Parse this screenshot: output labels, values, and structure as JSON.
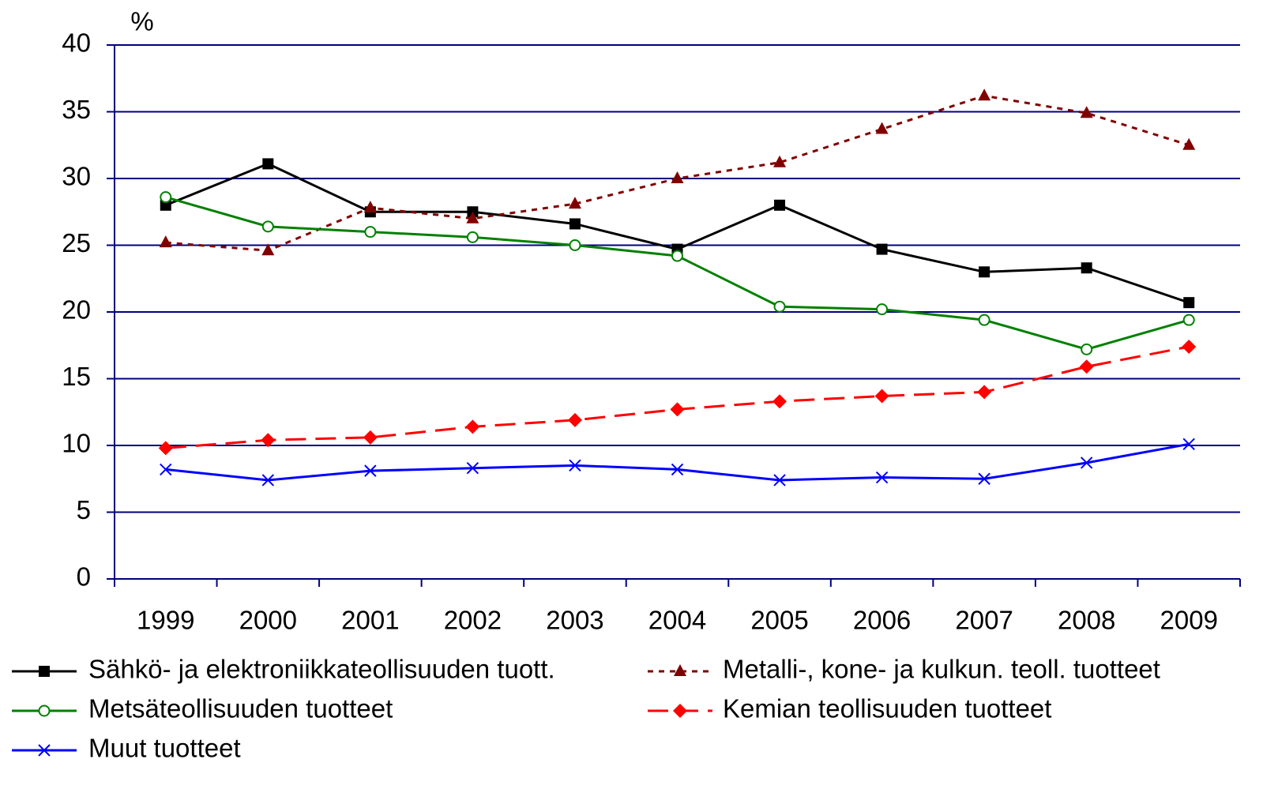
{
  "chart_data": {
    "type": "line",
    "y_axis_label": "%",
    "categories": [
      "1999",
      "2000",
      "2001",
      "2002",
      "2003",
      "2004",
      "2005",
      "2006",
      "2007",
      "2008",
      "2009"
    ],
    "ylim": [
      0,
      40
    ],
    "yticks": [
      0,
      5,
      10,
      15,
      20,
      25,
      30,
      35,
      40
    ],
    "grid": true,
    "grid_color": "#000080",
    "legend": "bottom",
    "series": [
      {
        "name": "Sähkö- ja elektroniikkateollisuuden  tuott.",
        "color": "#000000",
        "marker": "square",
        "dash": "solid",
        "values": [
          28.0,
          31.1,
          27.5,
          27.5,
          26.6,
          24.7,
          28.0,
          24.7,
          23.0,
          23.3,
          20.7
        ]
      },
      {
        "name": "Metalli-, kone- ja kulkun. teoll. tuotteet",
        "color": "#800000",
        "marker": "triangle",
        "dash": "dotted",
        "values": [
          25.2,
          24.6,
          27.8,
          27.0,
          28.1,
          30.0,
          31.2,
          33.7,
          36.2,
          34.9,
          32.5
        ]
      },
      {
        "name": "Metsäteollisuuden tuotteet",
        "color": "#008000",
        "marker": "circle-open",
        "dash": "solid",
        "values": [
          28.6,
          26.4,
          26.0,
          25.6,
          25.0,
          24.2,
          20.4,
          20.2,
          19.4,
          17.2,
          19.4
        ]
      },
      {
        "name": "Kemian teollisuuden tuotteet",
        "color": "#ff0000",
        "marker": "diamond",
        "dash": "dashed",
        "values": [
          9.8,
          10.4,
          10.6,
          11.4,
          11.9,
          12.7,
          13.3,
          13.7,
          14.0,
          15.9,
          17.4
        ]
      },
      {
        "name": "Muut tuotteet",
        "color": "#0000ff",
        "marker": "x",
        "dash": "solid",
        "values": [
          8.2,
          7.4,
          8.1,
          8.3,
          8.5,
          8.2,
          7.4,
          7.6,
          7.5,
          8.7,
          10.1
        ]
      }
    ]
  }
}
